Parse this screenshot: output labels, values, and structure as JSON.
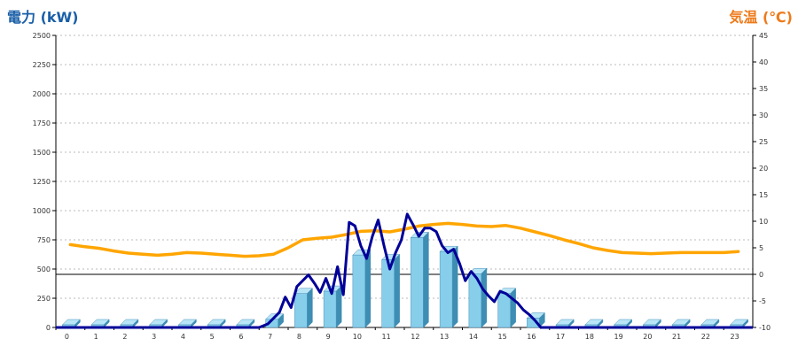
{
  "chart_data": {
    "type": "bar+line",
    "ylabel_left": "電力 (kW)",
    "ylabel_right": "気温 (℃)",
    "ylim_left": [
      0,
      2500
    ],
    "ylim_right": [
      -10,
      45
    ],
    "yticks_left": [
      "0",
      "250",
      "500",
      "750",
      "1000",
      "1250",
      "1500",
      "1750",
      "2000",
      "2250",
      "2500"
    ],
    "yticks_right": [
      "-10",
      "-5",
      "0",
      "5",
      "10",
      "15",
      "20",
      "25",
      "30",
      "35",
      "40",
      "45"
    ],
    "categories": [
      "0",
      "1",
      "2",
      "3",
      "4",
      "5",
      "6",
      "7",
      "8",
      "9",
      "10",
      "11",
      "12",
      "13",
      "14",
      "15",
      "16",
      "17",
      "18",
      "19",
      "20",
      "21",
      "22",
      "23"
    ],
    "grid": true,
    "bar_series": {
      "values": [
        0,
        0,
        0,
        0,
        0,
        0,
        0,
        70,
        290,
        310,
        620,
        580,
        770,
        650,
        460,
        290,
        80,
        0,
        0,
        0,
        0,
        0,
        0,
        0
      ],
      "color": "#87ceeb"
    },
    "power_line": {
      "color": "#000099",
      "x": [
        6.5,
        6.8,
        7,
        7.2,
        7.4,
        7.6,
        7.8,
        8,
        8.2,
        8.4,
        8.6,
        8.8,
        9,
        9.2,
        9.4,
        9.6,
        9.8,
        10,
        10.2,
        10.4,
        10.6,
        10.8,
        11,
        11.2,
        11.4,
        11.6,
        11.8,
        12,
        12.2,
        12.4,
        12.6,
        12.8,
        13,
        13.2,
        13.4,
        13.6,
        13.8,
        14,
        14.2,
        14.4,
        14.6,
        14.8,
        15,
        15.2,
        15.4,
        15.6,
        15.8,
        16,
        16.2
      ],
      "y": [
        0,
        30,
        80,
        130,
        260,
        170,
        350,
        400,
        450,
        380,
        300,
        420,
        290,
        520,
        280,
        900,
        870,
        700,
        590,
        780,
        920,
        700,
        500,
        640,
        750,
        970,
        880,
        780,
        850,
        850,
        820,
        700,
        640,
        670,
        550,
        400,
        480,
        420,
        330,
        270,
        220,
        310,
        290,
        250,
        210,
        150,
        110,
        60,
        0
      ]
    },
    "temp_line": {
      "color": "#ffa500",
      "x": [
        0,
        0.5,
        1,
        1.5,
        2,
        2.5,
        3,
        3.5,
        4,
        4.5,
        5,
        5.5,
        6,
        6.5,
        7,
        7.5,
        8,
        8.5,
        9,
        9.5,
        10,
        10.5,
        11,
        11.5,
        12,
        12.5,
        13,
        13.5,
        14,
        14.5,
        15,
        15.5,
        16,
        16.5,
        17,
        17.5,
        18,
        18.5,
        19,
        19.5,
        20,
        20.5,
        21,
        21.5,
        22,
        22.5,
        23
      ],
      "y": [
        5.6,
        5.2,
        4.9,
        4.4,
        4.0,
        3.8,
        3.6,
        3.8,
        4.1,
        4.0,
        3.8,
        3.6,
        3.4,
        3.5,
        3.8,
        5.0,
        6.5,
        6.8,
        7.0,
        7.5,
        8.1,
        8.2,
        8.0,
        8.5,
        9.1,
        9.4,
        9.6,
        9.4,
        9.1,
        9.0,
        9.2,
        8.7,
        8.0,
        7.3,
        6.5,
        5.8,
        5.0,
        4.5,
        4.1,
        4.0,
        3.9,
        4.0,
        4.1,
        4.1,
        4.1,
        4.1,
        4.3
      ]
    }
  }
}
